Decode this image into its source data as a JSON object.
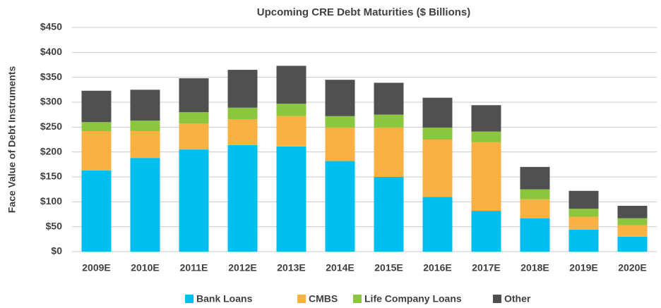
{
  "chart_data": {
    "type": "stacked_bar",
    "title": "Upcoming CRE Debt Maturities ($ Billions)",
    "y_label": "Face Value of Debt Instruments",
    "categories": [
      "2009E",
      "2010E",
      "2011E",
      "2012E",
      "2013E",
      "2014E",
      "2015E",
      "2016E",
      "2017E",
      "2018E",
      "2019E",
      "2020E"
    ],
    "series": [
      {
        "name": "Bank Loans",
        "color": "#00bfef",
        "values": [
          163,
          188,
          205,
          214,
          211,
          182,
          150,
          110,
          82,
          67,
          44,
          30
        ]
      },
      {
        "name": "CMBS",
        "color": "#f9b242",
        "values": [
          79,
          54,
          52,
          52,
          61,
          67,
          99,
          115,
          138,
          38,
          26,
          23
        ]
      },
      {
        "name": "Life Company Loans",
        "color": "#8cc63f",
        "values": [
          18,
          21,
          23,
          23,
          25,
          23,
          26,
          24,
          21,
          20,
          16,
          14
        ]
      },
      {
        "name": "Other",
        "color": "#505050",
        "values": [
          63,
          62,
          68,
          76,
          76,
          73,
          64,
          60,
          53,
          45,
          36,
          25
        ]
      }
    ],
    "ylim": [
      0,
      450
    ],
    "yticks": [
      {
        "value": 0,
        "label": "$0"
      },
      {
        "value": 50,
        "label": "$50"
      },
      {
        "value": 100,
        "label": "$100"
      },
      {
        "value": 150,
        "label": "$150"
      },
      {
        "value": 200,
        "label": "$200"
      },
      {
        "value": 250,
        "label": "$250"
      },
      {
        "value": 300,
        "label": "$300"
      },
      {
        "value": 350,
        "label": "$350"
      },
      {
        "value": 400,
        "label": "$400"
      },
      {
        "value": 450,
        "label": "$450"
      }
    ],
    "grid": true,
    "legend": "bottom"
  }
}
